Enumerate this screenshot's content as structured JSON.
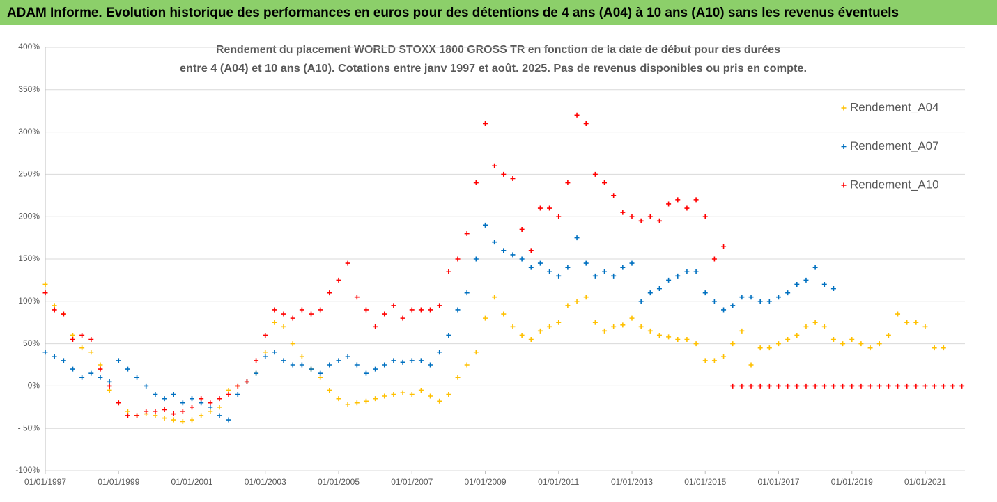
{
  "chart_data": {
    "type": "scatter",
    "title": "ADAM Informe. Evolution historique des performances en euros pour des détentions de 4 ans (A04) à 10 ans (A10) sans les revenus éventuels",
    "subtitle": [
      "Rendement du placement WORLD STOXX 1800 GROSS TR en fonction de la date de début pour des durées",
      "entre 4 (A04) et 10 ans (A10). Cotations entre janv 1997 et août. 2025. Pas de revenus disponibles ou pris en compte."
    ],
    "xlim": [
      "01/01/1997",
      "01/02/2022"
    ],
    "xticks": [
      "01/01/1997",
      "01/01/1999",
      "01/01/2001",
      "01/01/2003",
      "01/01/2005",
      "01/01/2007",
      "01/01/2009",
      "01/01/2011",
      "01/01/2013",
      "01/01/2015",
      "01/01/2017",
      "01/01/2019",
      "01/01/2021"
    ],
    "ylim": [
      -100,
      400
    ],
    "yticks": [
      {
        "value": -100,
        "label": "-100%"
      },
      {
        "value": -50,
        "label": "- 50%"
      },
      {
        "value": 0,
        "label": "0%"
      },
      {
        "value": 50,
        "label": "50%"
      },
      {
        "value": 100,
        "label": "100%"
      },
      {
        "value": 150,
        "label": "150%"
      },
      {
        "value": 200,
        "label": "200%"
      },
      {
        "value": 250,
        "label": "250%"
      },
      {
        "value": 300,
        "label": "300%"
      },
      {
        "value": 350,
        "label": "350%"
      },
      {
        "value": 400,
        "label": "400%"
      }
    ],
    "grid": true,
    "legend": "right",
    "series": [
      {
        "name": "Rendement_A04",
        "color": "#ffc000",
        "x": [
          "01/01/1997",
          "01/04/1997",
          "01/07/1997",
          "01/10/1997",
          "01/01/1998",
          "01/04/1998",
          "01/07/1998",
          "01/10/1998",
          "01/01/1999",
          "01/04/1999",
          "01/07/1999",
          "01/10/1999",
          "01/01/2000",
          "01/04/2000",
          "01/07/2000",
          "01/10/2000",
          "01/01/2001",
          "01/04/2001",
          "01/07/2001",
          "01/10/2001",
          "01/01/2002",
          "01/04/2002",
          "01/07/2002",
          "01/10/2002",
          "01/01/2003",
          "01/04/2003",
          "01/07/2003",
          "01/10/2003",
          "01/01/2004",
          "01/04/2004",
          "01/07/2004",
          "01/10/2004",
          "01/01/2005",
          "01/04/2005",
          "01/07/2005",
          "01/10/2005",
          "01/01/2006",
          "01/04/2006",
          "01/07/2006",
          "01/10/2006",
          "01/01/2007",
          "01/04/2007",
          "01/07/2007",
          "01/10/2007",
          "01/01/2008",
          "01/04/2008",
          "01/07/2008",
          "01/10/2008",
          "01/01/2009",
          "01/04/2009",
          "01/07/2009",
          "01/10/2009",
          "01/01/2010",
          "01/04/2010",
          "01/07/2010",
          "01/10/2010",
          "01/01/2011",
          "01/04/2011",
          "01/07/2011",
          "01/10/2011",
          "01/01/2012",
          "01/04/2012",
          "01/07/2012",
          "01/10/2012",
          "01/01/2013",
          "01/04/2013",
          "01/07/2013",
          "01/10/2013",
          "01/01/2014",
          "01/04/2014",
          "01/07/2014",
          "01/10/2014",
          "01/01/2015",
          "01/04/2015",
          "01/07/2015",
          "01/10/2015",
          "01/01/2016",
          "01/04/2016",
          "01/07/2016",
          "01/10/2016",
          "01/01/2017",
          "01/04/2017",
          "01/07/2017",
          "01/10/2017",
          "01/01/2018",
          "01/04/2018",
          "01/07/2018",
          "01/10/2018",
          "01/01/2019",
          "01/04/2019",
          "01/07/2019",
          "01/10/2019",
          "01/01/2020",
          "01/04/2020",
          "01/07/2020",
          "01/10/2020",
          "01/01/2021",
          "01/04/2021",
          "01/07/2021"
        ],
        "values": [
          120,
          95,
          85,
          60,
          45,
          40,
          25,
          -5,
          -20,
          -30,
          -35,
          -33,
          -35,
          -38,
          -40,
          -42,
          -40,
          -35,
          -30,
          -25,
          -5,
          0,
          5,
          15,
          40,
          75,
          70,
          50,
          35,
          20,
          10,
          -5,
          -15,
          -22,
          -20,
          -18,
          -15,
          -12,
          -10,
          -8,
          -10,
          -5,
          -12,
          -18,
          -10,
          10,
          25,
          40,
          80,
          105,
          85,
          70,
          60,
          55,
          65,
          70,
          75,
          95,
          100,
          105,
          75,
          65,
          70,
          72,
          80,
          70,
          65,
          60,
          58,
          55,
          55,
          50,
          30,
          30,
          35,
          50,
          65,
          25,
          45,
          45,
          50,
          55,
          60,
          70,
          75,
          70,
          55,
          50,
          55,
          50,
          45,
          50,
          60,
          85,
          75,
          75,
          70,
          45,
          45
        ]
      },
      {
        "name": "Rendement_A07",
        "color": "#0070c0",
        "x": [
          "01/01/1997",
          "01/04/1997",
          "01/07/1997",
          "01/10/1997",
          "01/01/1998",
          "01/04/1998",
          "01/07/1998",
          "01/10/1998",
          "01/01/1999",
          "01/04/1999",
          "01/07/1999",
          "01/10/1999",
          "01/01/2000",
          "01/04/2000",
          "01/07/2000",
          "01/10/2000",
          "01/01/2001",
          "01/04/2001",
          "01/07/2001",
          "01/10/2001",
          "01/01/2002",
          "01/04/2002",
          "01/07/2002",
          "01/10/2002",
          "01/01/2003",
          "01/04/2003",
          "01/07/2003",
          "01/10/2003",
          "01/01/2004",
          "01/04/2004",
          "01/07/2004",
          "01/10/2004",
          "01/01/2005",
          "01/04/2005",
          "01/07/2005",
          "01/10/2005",
          "01/01/2006",
          "01/04/2006",
          "01/07/2006",
          "01/10/2006",
          "01/01/2007",
          "01/04/2007",
          "01/07/2007",
          "01/10/2007",
          "01/01/2008",
          "01/04/2008",
          "01/07/2008",
          "01/10/2008",
          "01/01/2009",
          "01/04/2009",
          "01/07/2009",
          "01/10/2009",
          "01/01/2010",
          "01/04/2010",
          "01/07/2010",
          "01/10/2010",
          "01/01/2011",
          "01/04/2011",
          "01/07/2011",
          "01/10/2011",
          "01/01/2012",
          "01/04/2012",
          "01/07/2012",
          "01/10/2012",
          "01/01/2013",
          "01/04/2013",
          "01/07/2013",
          "01/10/2013",
          "01/01/2014",
          "01/04/2014",
          "01/07/2014",
          "01/10/2014",
          "01/01/2015",
          "01/04/2015",
          "01/07/2015",
          "01/10/2015",
          "01/01/2016",
          "01/04/2016",
          "01/07/2016",
          "01/10/2016",
          "01/01/2017",
          "01/04/2017",
          "01/07/2017",
          "01/10/2017",
          "01/01/2018",
          "01/04/2018",
          "01/07/2018"
        ],
        "values": [
          40,
          35,
          30,
          20,
          10,
          15,
          10,
          5,
          30,
          20,
          10,
          0,
          -10,
          -15,
          -10,
          -20,
          -15,
          -20,
          -25,
          -35,
          -40,
          -10,
          5,
          15,
          35,
          40,
          30,
          25,
          25,
          20,
          15,
          25,
          30,
          35,
          25,
          15,
          20,
          25,
          30,
          28,
          30,
          30,
          25,
          40,
          60,
          90,
          110,
          150,
          190,
          170,
          160,
          155,
          150,
          140,
          145,
          135,
          130,
          140,
          175,
          145,
          130,
          135,
          130,
          140,
          145,
          100,
          110,
          115,
          125,
          130,
          135,
          135,
          110,
          100,
          90,
          95,
          105,
          105,
          100,
          100,
          105,
          110,
          120,
          125,
          140,
          120,
          115
        ]
      },
      {
        "name": "Rendement_A10",
        "color": "#ff0000",
        "x": [
          "01/01/1997",
          "01/04/1997",
          "01/07/1997",
          "01/10/1997",
          "01/01/1998",
          "01/04/1998",
          "01/07/1998",
          "01/10/1998",
          "01/01/1999",
          "01/04/1999",
          "01/07/1999",
          "01/10/1999",
          "01/01/2000",
          "01/04/2000",
          "01/07/2000",
          "01/10/2000",
          "01/01/2001",
          "01/04/2001",
          "01/07/2001",
          "01/10/2001",
          "01/01/2002",
          "01/04/2002",
          "01/07/2002",
          "01/10/2002",
          "01/01/2003",
          "01/04/2003",
          "01/07/2003",
          "01/10/2003",
          "01/01/2004",
          "01/04/2004",
          "01/07/2004",
          "01/10/2004",
          "01/01/2005",
          "01/04/2005",
          "01/07/2005",
          "01/10/2005",
          "01/01/2006",
          "01/04/2006",
          "01/07/2006",
          "01/10/2006",
          "01/01/2007",
          "01/04/2007",
          "01/07/2007",
          "01/10/2007",
          "01/01/2008",
          "01/04/2008",
          "01/07/2008",
          "01/10/2008",
          "01/01/2009",
          "01/04/2009",
          "01/07/2009",
          "01/10/2009",
          "01/01/2010",
          "01/04/2010",
          "01/07/2010",
          "01/10/2010",
          "01/01/2011",
          "01/04/2011",
          "01/07/2011",
          "01/10/2011",
          "01/01/2012",
          "01/04/2012",
          "01/07/2012",
          "01/10/2012",
          "01/01/2013",
          "01/04/2013",
          "01/07/2013",
          "01/10/2013",
          "01/01/2014",
          "01/04/2014",
          "01/07/2014",
          "01/10/2014",
          "01/01/2015",
          "01/04/2015",
          "01/07/2015",
          "01/10/2015",
          "01/01/2016",
          "01/04/2016",
          "01/07/2016",
          "01/10/2016",
          "01/01/2017",
          "01/04/2017",
          "01/07/2017",
          "01/10/2017",
          "01/01/2018",
          "01/04/2018",
          "01/07/2018",
          "01/10/2018",
          "01/01/2019",
          "01/04/2019",
          "01/07/2019",
          "01/10/2019",
          "01/01/2020",
          "01/04/2020",
          "01/07/2020",
          "01/10/2020",
          "01/01/2021",
          "01/04/2021",
          "01/07/2021",
          "01/10/2021",
          "01/01/2022"
        ],
        "values": [
          110,
          90,
          85,
          55,
          60,
          55,
          20,
          0,
          -20,
          -35,
          -35,
          -30,
          -30,
          -28,
          -33,
          -30,
          -25,
          -15,
          -20,
          -15,
          -10,
          0,
          5,
          30,
          60,
          90,
          85,
          80,
          90,
          85,
          90,
          110,
          125,
          145,
          105,
          90,
          70,
          85,
          95,
          80,
          90,
          90,
          90,
          95,
          135,
          150,
          180,
          240,
          310,
          260,
          250,
          245,
          185,
          160,
          210,
          210,
          200,
          240,
          320,
          310,
          250,
          240,
          225,
          205,
          200,
          195,
          200,
          195,
          215,
          220,
          210,
          220,
          200,
          150,
          165,
          0,
          0,
          0,
          0,
          0,
          0,
          0,
          0,
          0,
          0,
          0,
          0,
          0,
          0,
          0,
          0,
          0,
          0,
          0,
          0,
          0,
          0,
          0,
          0,
          0,
          0
        ]
      }
    ]
  }
}
